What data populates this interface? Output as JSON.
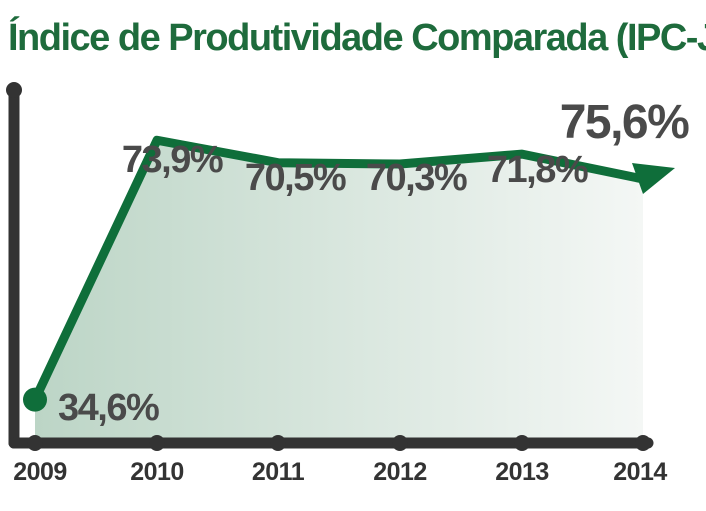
{
  "chart_data": {
    "type": "line",
    "title": "Índice de Produtividade Comparada (IPC-Jus)",
    "xlabel": "",
    "ylabel": "",
    "categories": [
      "2009",
      "2010",
      "2011",
      "2012",
      "2013",
      "2014"
    ],
    "series": [
      {
        "name": "IPC-Jus",
        "values": [
          34.6,
          73.9,
          70.5,
          70.3,
          71.8,
          75.6
        ],
        "labels": [
          "34,6%",
          "73,9%",
          "70,5%",
          "70,3%",
          "71,8%",
          "75,6%"
        ]
      }
    ],
    "ylim": [
      30,
      80
    ],
    "grid": false,
    "legend": "none",
    "colors": {
      "title": "#1e6b3c",
      "line": "#0f6e3a",
      "area_dark": "#bcd5c6",
      "area_light": "#f4f7f5",
      "axis": "#333333",
      "label": "#4a4a4a",
      "tick": "#333333"
    }
  }
}
